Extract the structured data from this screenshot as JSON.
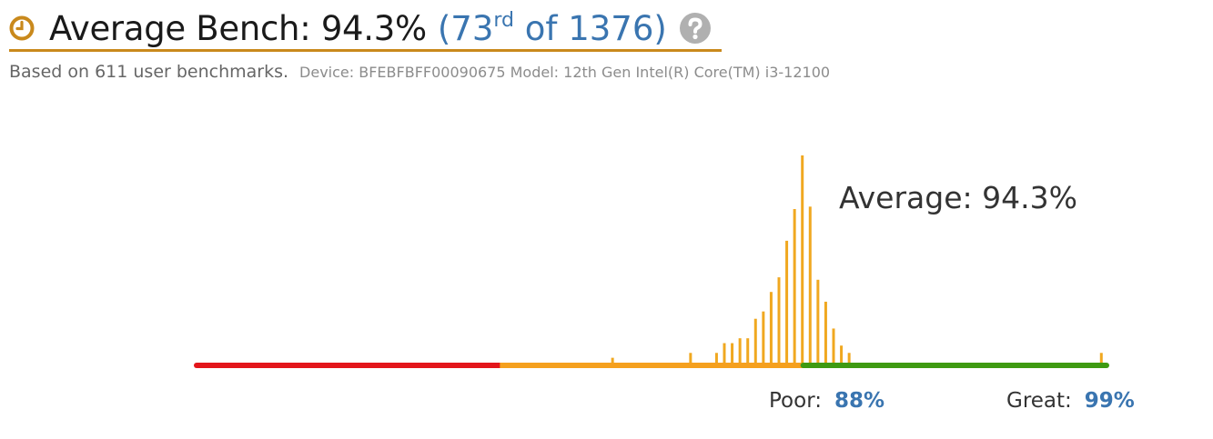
{
  "header": {
    "title": "Average Bench: 94.3%",
    "rank_open": "(73",
    "rank_suffix": "rd",
    "rank_close": " of 1376)",
    "icons": [
      "clock-icon",
      "help-icon"
    ]
  },
  "subtitle": {
    "main": "Based on 611 user benchmarks.",
    "device": "Device: BFEBFBFF00090675 Model: 12th Gen Intel(R) Core(TM) i3-12100"
  },
  "colors": {
    "accent": "#c9891c",
    "link": "#3a75b0",
    "bar": "#f0a820",
    "scale_red": "#e3161b",
    "scale_orange": "#f5a01e",
    "scale_green": "#3e9a12"
  },
  "chart_data": {
    "type": "bar",
    "annotation": "Average: 94.3%",
    "x_range": [
      82.5,
      100
    ],
    "scale_segments": [
      "red",
      "orange",
      "green"
    ],
    "bars": [
      {
        "x": 90.5,
        "count": 2
      },
      {
        "x": 92.0,
        "count": 4
      },
      {
        "x": 92.5,
        "count": 4
      },
      {
        "x": 92.65,
        "count": 8
      },
      {
        "x": 92.8,
        "count": 8
      },
      {
        "x": 92.95,
        "count": 10
      },
      {
        "x": 93.1,
        "count": 10
      },
      {
        "x": 93.25,
        "count": 18
      },
      {
        "x": 93.4,
        "count": 21
      },
      {
        "x": 93.55,
        "count": 29
      },
      {
        "x": 93.7,
        "count": 35
      },
      {
        "x": 93.85,
        "count": 50
      },
      {
        "x": 94.0,
        "count": 63
      },
      {
        "x": 94.15,
        "count": 85
      },
      {
        "x": 94.3,
        "count": 64
      },
      {
        "x": 94.45,
        "count": 34
      },
      {
        "x": 94.6,
        "count": 25
      },
      {
        "x": 94.75,
        "count": 14
      },
      {
        "x": 94.9,
        "count": 7
      },
      {
        "x": 95.05,
        "count": 4
      },
      {
        "x": 99.9,
        "count": 4
      }
    ]
  },
  "legend": {
    "poor_label": "Poor:",
    "poor_value": "88%",
    "great_label": "Great:",
    "great_value": "99%"
  }
}
